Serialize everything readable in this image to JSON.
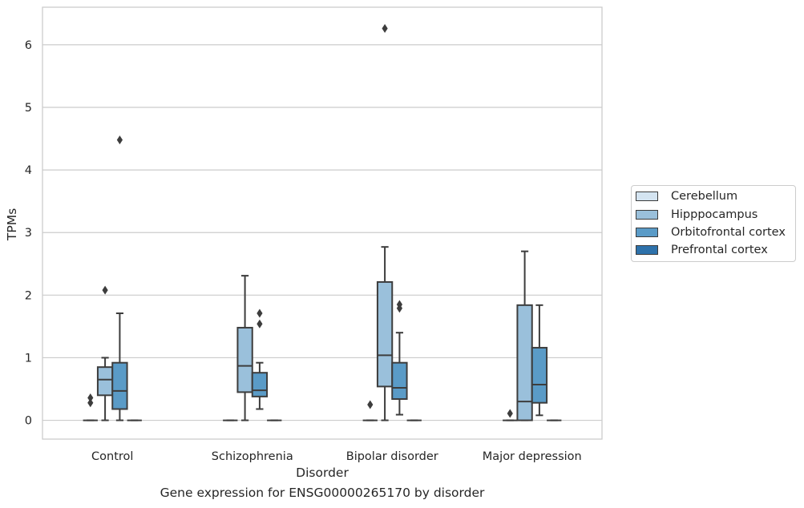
{
  "caption": "Gene expression for ENSG00000265170 by disorder",
  "chart_data": {
    "type": "box",
    "title": "",
    "xlabel": "Disorder",
    "ylabel": "TPMs",
    "ylim": [
      -0.3,
      6.6
    ],
    "yticks": [
      0,
      1,
      2,
      3,
      4,
      5,
      6
    ],
    "grid": "horizontal",
    "legend_position": "right",
    "categories": [
      "Control",
      "Schizophrenia",
      "Bipolar disorder",
      "Major depression"
    ],
    "series": [
      {
        "name": "Cerebellum",
        "color": "#d4e4f1",
        "boxes": [
          {
            "min": 0,
            "q1": 0,
            "median": 0,
            "q3": 0,
            "max": 0,
            "outliers": [
              0.28,
              0.36
            ]
          },
          {
            "min": 0,
            "q1": 0,
            "median": 0,
            "q3": 0,
            "max": 0,
            "outliers": []
          },
          {
            "min": 0,
            "q1": 0,
            "median": 0,
            "q3": 0,
            "max": 0,
            "outliers": [
              0.25
            ]
          },
          {
            "min": 0,
            "q1": 0,
            "median": 0,
            "q3": 0,
            "max": 0,
            "outliers": [
              0.11
            ]
          }
        ]
      },
      {
        "name": "Hipppocampus",
        "color": "#9ac0db",
        "boxes": [
          {
            "min": 0,
            "q1": 0.4,
            "median": 0.65,
            "q3": 0.85,
            "max": 1.0,
            "outliers": [
              2.08
            ]
          },
          {
            "min": 0,
            "q1": 0.45,
            "median": 0.87,
            "q3": 1.48,
            "max": 2.31,
            "outliers": []
          },
          {
            "min": 0,
            "q1": 0.54,
            "median": 1.04,
            "q3": 2.21,
            "max": 2.77,
            "outliers": [
              6.26
            ]
          },
          {
            "min": 0,
            "q1": 0,
            "median": 0.3,
            "q3": 1.84,
            "max": 2.7,
            "outliers": []
          }
        ]
      },
      {
        "name": "Orbitofrontal cortex",
        "color": "#5a9bc7",
        "boxes": [
          {
            "min": 0,
            "q1": 0.18,
            "median": 0.47,
            "q3": 0.92,
            "max": 1.71,
            "outliers": [
              4.48
            ]
          },
          {
            "min": 0.18,
            "q1": 0.38,
            "median": 0.48,
            "q3": 0.76,
            "max": 0.92,
            "outliers": [
              1.54,
              1.71
            ]
          },
          {
            "min": 0.09,
            "q1": 0.34,
            "median": 0.52,
            "q3": 0.92,
            "max": 1.4,
            "outliers": [
              1.79,
              1.85
            ]
          },
          {
            "min": 0.08,
            "q1": 0.28,
            "median": 0.57,
            "q3": 1.16,
            "max": 1.84,
            "outliers": []
          }
        ]
      },
      {
        "name": "Prefrontal cortex",
        "color": "#2e72ab",
        "boxes": [
          {
            "min": 0,
            "q1": 0,
            "median": 0,
            "q3": 0,
            "max": 0,
            "outliers": []
          },
          {
            "min": 0,
            "q1": 0,
            "median": 0,
            "q3": 0,
            "max": 0,
            "outliers": []
          },
          {
            "min": 0,
            "q1": 0,
            "median": 0,
            "q3": 0,
            "max": 0,
            "outliers": []
          },
          {
            "min": 0,
            "q1": 0,
            "median": 0,
            "q3": 0,
            "max": 0,
            "outliers": []
          }
        ]
      }
    ]
  }
}
